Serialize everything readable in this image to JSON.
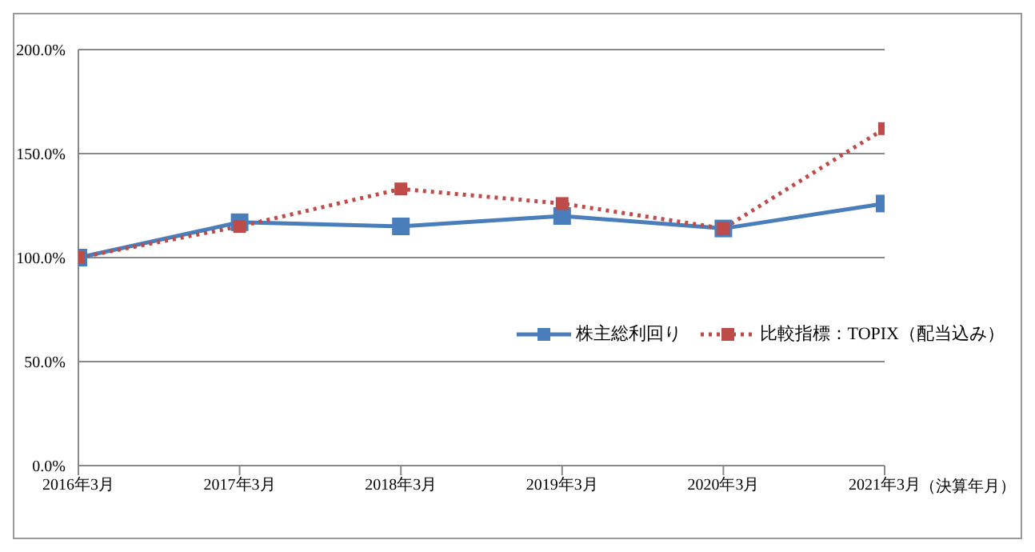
{
  "chart_data": {
    "type": "line",
    "xlabel": "（決算年月）",
    "categories": [
      "2016年3月",
      "2017年3月",
      "2018年3月",
      "2019年3月",
      "2020年3月",
      "2021年3月"
    ],
    "series": [
      {
        "name": "株主総利回り",
        "color": "#4a7ebb",
        "values": [
          100,
          117,
          115,
          120,
          114,
          126
        ],
        "line_style": "solid"
      },
      {
        "name": "比較指標：TOPIX（配当込み）",
        "color": "#be4b48",
        "values": [
          100,
          115,
          133,
          126,
          114,
          162
        ],
        "line_style": "dotted"
      }
    ],
    "ylim": [
      0,
      200
    ],
    "yticks": [
      {
        "value": 0,
        "label": "0.0%"
      },
      {
        "value": 50,
        "label": "50.0%"
      },
      {
        "value": 100,
        "label": "100.0%"
      },
      {
        "value": 150,
        "label": "150.0%"
      },
      {
        "value": 200,
        "label": "200.0%"
      }
    ],
    "grid": "y",
    "legend": "right",
    "marker": "square"
  }
}
